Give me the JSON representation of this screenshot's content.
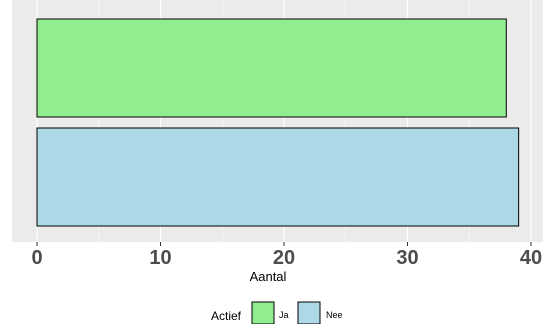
{
  "chart_data": {
    "type": "bar",
    "orientation": "horizontal",
    "categories": [
      "Ja",
      "Nee"
    ],
    "values": [
      38,
      39
    ],
    "series": [
      {
        "name": "Ja",
        "value": 38,
        "color": "#90EE90"
      },
      {
        "name": "Nee",
        "value": 39,
        "color": "#ADD8E6"
      }
    ],
    "xlabel": "Aantal",
    "ylabel": "",
    "xlim": [
      0,
      40
    ],
    "x_ticks": [
      0,
      10,
      20,
      30,
      40
    ],
    "x_tick_labels": [
      "0",
      "10",
      "20",
      "30",
      "40"
    ],
    "grid": true,
    "panel_background": "#EBEBEB",
    "legend": {
      "title": "Actief",
      "placement": "bottom",
      "entries": [
        "Ja",
        "Nee"
      ]
    }
  }
}
